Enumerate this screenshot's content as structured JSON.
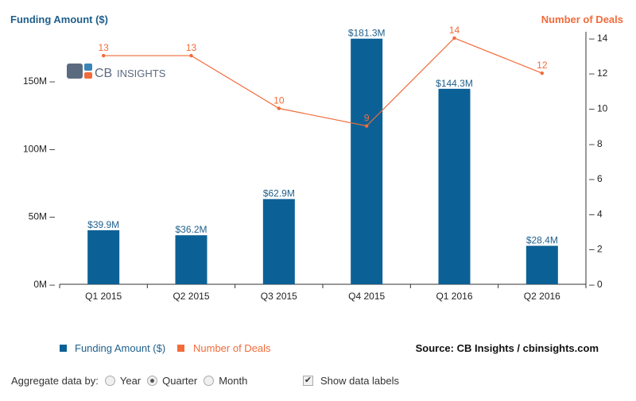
{
  "chart_data": {
    "type": "bar+line",
    "categories": [
      "Q1 2015",
      "Q2 2015",
      "Q3 2015",
      "Q4 2015",
      "Q1 2016",
      "Q2 2016"
    ],
    "series": [
      {
        "name": "Funding Amount ($)",
        "type": "bar",
        "axis": "left",
        "color": "#0b6196",
        "values": [
          39.9,
          36.2,
          62.9,
          181.3,
          144.3,
          28.4
        ],
        "labels": [
          "$39.9M",
          "$36.2M",
          "$62.9M",
          "$181.3M",
          "$144.3M",
          "$28.4M"
        ]
      },
      {
        "name": "Number of Deals",
        "type": "line",
        "axis": "right",
        "color": "#f26b3a",
        "values": [
          13,
          13,
          10,
          9,
          14,
          12
        ]
      }
    ],
    "ylabel_left": "Funding Amount ($)",
    "ylabel_right": "Number of Deals",
    "ylim_left": [
      0,
      185
    ],
    "yticks_left": [
      "0M",
      "50M",
      "100M",
      "150M"
    ],
    "ylim_right": [
      0,
      14.2
    ],
    "yticks_right": [
      "0",
      "2",
      "4",
      "6",
      "8",
      "10",
      "12",
      "14"
    ],
    "legend": "bottom-left",
    "grid": false
  },
  "logo": "CB INSIGHTS",
  "source": "Source: CB Insights / cbinsights.com",
  "controls": {
    "aggregate_label": "Aggregate data by:",
    "options": [
      "Year",
      "Quarter",
      "Month"
    ],
    "selected": "Quarter",
    "show_labels": "Show data labels",
    "show_labels_checked": true
  }
}
